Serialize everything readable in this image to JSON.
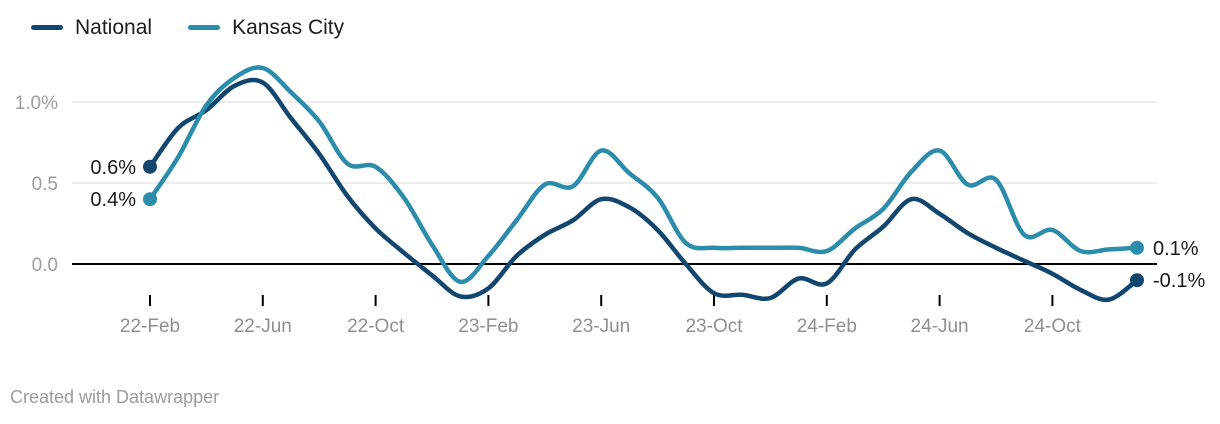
{
  "legend": {
    "items": [
      {
        "label": "National",
        "color": "#11466e"
      },
      {
        "label": "Kansas City",
        "color": "#2c8cab"
      }
    ]
  },
  "footer": {
    "credit": "Created with Datawrapper"
  },
  "chart_data": {
    "type": "line",
    "title": "",
    "xlabel": "",
    "ylabel": "",
    "x_unit": "month",
    "categories": [
      "22-Feb",
      "22-Mar",
      "22-Apr",
      "22-May",
      "22-Jun",
      "22-Jul",
      "22-Aug",
      "22-Sep",
      "22-Oct",
      "22-Nov",
      "22-Dec",
      "23-Jan",
      "23-Feb",
      "23-Mar",
      "23-Apr",
      "23-May",
      "23-Jun",
      "23-Jul",
      "23-Aug",
      "23-Sep",
      "23-Oct",
      "23-Nov",
      "23-Dec",
      "24-Jan",
      "24-Feb",
      "24-Mar",
      "24-Apr",
      "24-May",
      "24-Jun",
      "24-Jul",
      "24-Aug",
      "24-Sep",
      "24-Oct",
      "24-Nov",
      "24-Dec",
      "25-Jan"
    ],
    "series": [
      {
        "name": "National",
        "color": "#11466e",
        "start_label": "0.6%",
        "end_label": "-0.1%",
        "values": [
          0.6,
          0.84,
          0.95,
          1.1,
          1.12,
          0.9,
          0.68,
          0.42,
          0.22,
          0.07,
          -0.07,
          -0.2,
          -0.15,
          0.05,
          0.18,
          0.27,
          0.4,
          0.35,
          0.21,
          0.0,
          -0.18,
          -0.19,
          -0.21,
          -0.09,
          -0.12,
          0.09,
          0.23,
          0.4,
          0.31,
          0.19,
          0.1,
          0.02,
          -0.06,
          -0.16,
          -0.22,
          -0.1
        ]
      },
      {
        "name": "Kansas City",
        "color": "#2c8cab",
        "start_label": "0.4%",
        "end_label": "0.1%",
        "values": [
          0.4,
          0.66,
          0.98,
          1.15,
          1.21,
          1.06,
          0.88,
          0.62,
          0.6,
          0.41,
          0.12,
          -0.11,
          0.05,
          0.27,
          0.49,
          0.48,
          0.7,
          0.56,
          0.41,
          0.13,
          0.1,
          0.1,
          0.1,
          0.1,
          0.08,
          0.22,
          0.34,
          0.57,
          0.7,
          0.49,
          0.52,
          0.18,
          0.21,
          0.08,
          0.09,
          0.1
        ]
      }
    ],
    "y_axis": {
      "ticks": [
        {
          "value": 1.0,
          "label": "1.0%"
        },
        {
          "value": 0.5,
          "label": "0.5"
        },
        {
          "value": 0.0,
          "label": "0.0"
        }
      ],
      "grid": true,
      "gridline_color": "#e5e5e5",
      "baseline_color": "#000000",
      "label_color": "#9d9d9d"
    },
    "x_axis": {
      "tick_every": 4,
      "tick_labels": [
        "22-Feb",
        "22-Jun",
        "22-Oct",
        "23-Feb",
        "23-Jun",
        "23-Oct",
        "24-Feb",
        "24-Jun",
        "24-Oct"
      ],
      "tick_color": "#000000",
      "label_color": "#8f8f8f"
    },
    "point_label_color": "#1a1a1a",
    "legend_position": "top-left"
  }
}
